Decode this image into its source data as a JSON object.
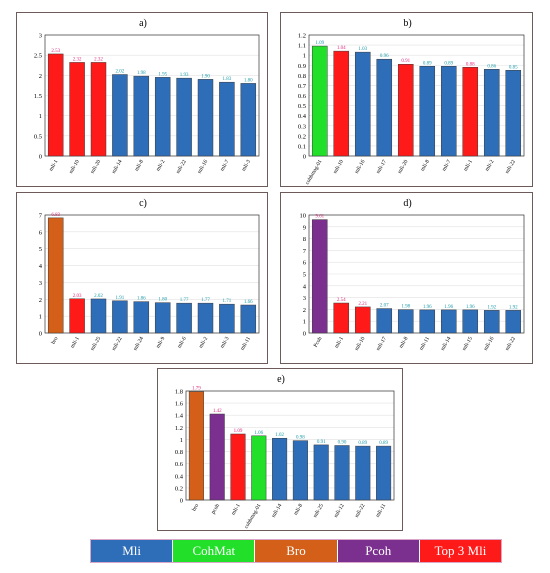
{
  "colors": {
    "Mli": "#2e6db8",
    "CohMat": "#22e02a",
    "Bro": "#d35f18",
    "Pcoh": "#7b2f8e",
    "Top3": "#ff1a1a",
    "axis": "#333333",
    "grid": "#e2e2e2",
    "label_blue": "#1b9aa8",
    "label_pink": "#e0287a"
  },
  "legend": [
    {
      "key": "Mli",
      "label": "Mli"
    },
    {
      "key": "CohMat",
      "label": "CohMat"
    },
    {
      "key": "Bro",
      "label": "Bro"
    },
    {
      "key": "Pcoh",
      "label": "Pcoh"
    },
    {
      "key": "Top3",
      "label": "Top 3 Mli"
    }
  ],
  "chart_data": [
    {
      "type": "bar",
      "title": "a)",
      "ylim": [
        0,
        3
      ],
      "yticks": [
        0,
        0.5,
        1,
        1.5,
        2,
        2.5,
        3
      ],
      "grid": true,
      "categories": [
        "mli-1",
        "mli-10",
        "mli-20",
        "mli-14",
        "mli-8",
        "mli-2",
        "mli-22",
        "mli-16",
        "mli-7",
        "mli-3"
      ],
      "values": [
        2.53,
        2.32,
        2.32,
        2.02,
        1.98,
        1.95,
        1.93,
        1.9,
        1.83,
        1.8
      ],
      "groups": [
        "Top3",
        "Top3",
        "Top3",
        "Mli",
        "Mli",
        "Mli",
        "Mli",
        "Mli",
        "Mli",
        "Mli"
      ]
    },
    {
      "type": "bar",
      "title": "b)",
      "ylim": [
        0,
        1.2
      ],
      "yticks": [
        0,
        0.1,
        0.2,
        0.3,
        0.4,
        0.5,
        0.6,
        0.7,
        0.8,
        0.9,
        1,
        1.1,
        1.2
      ],
      "grid": true,
      "categories": [
        "cohbmag-01",
        "mli-10",
        "mli-16",
        "mli-17",
        "mli-20",
        "mli-8",
        "mli-7",
        "mli-1",
        "mli-2",
        "mli-22"
      ],
      "values": [
        1.09,
        1.04,
        1.03,
        0.96,
        0.91,
        0.89,
        0.89,
        0.88,
        0.86,
        0.85
      ],
      "groups": [
        "CohMat",
        "Top3",
        "Mli",
        "Mli",
        "Top3",
        "Mli",
        "Mli",
        "Top3",
        "Mli",
        "Mli"
      ]
    },
    {
      "type": "bar",
      "title": "c)",
      "ylim": [
        0,
        7
      ],
      "yticks": [
        0,
        1,
        2,
        3,
        4,
        5,
        6,
        7
      ],
      "grid": true,
      "categories": [
        "bro",
        "mli-1",
        "mli-25",
        "mli-22",
        "mli-24",
        "mli-9",
        "mli-6",
        "mli-2",
        "mli-3",
        "mli-11"
      ],
      "values": [
        6.83,
        2.03,
        2.02,
        1.91,
        1.86,
        1.8,
        1.77,
        1.77,
        1.71,
        1.66
      ],
      "groups": [
        "Bro",
        "Top3",
        "Mli",
        "Mli",
        "Mli",
        "Mli",
        "Mli",
        "Mli",
        "Mli",
        "Mli"
      ]
    },
    {
      "type": "bar",
      "title": "d)",
      "ylim": [
        0,
        10
      ],
      "yticks": [
        0,
        1,
        2,
        3,
        4,
        5,
        6,
        7,
        8,
        9,
        10
      ],
      "grid": true,
      "categories": [
        "Pcoh",
        "mli-1",
        "mli-10",
        "mli-17",
        "mli-8",
        "mli-11",
        "mli-14",
        "mli-15",
        "mli-16",
        "mli-22"
      ],
      "values": [
        9.61,
        2.54,
        2.21,
        2.07,
        1.98,
        1.96,
        1.96,
        1.96,
        1.92,
        1.92
      ],
      "groups": [
        "Pcoh",
        "Top3",
        "Top3",
        "Mli",
        "Mli",
        "Mli",
        "Mli",
        "Mli",
        "Mli",
        "Mli"
      ]
    },
    {
      "type": "bar",
      "title": "e)",
      "ylim": [
        0,
        1.8
      ],
      "yticks": [
        0,
        0.2,
        0.4,
        0.6,
        0.8,
        1,
        1.2,
        1.4,
        1.6,
        1.8
      ],
      "grid": true,
      "categories": [
        "bro",
        "pcoh",
        "mli-1",
        "cohbmag-01",
        "mli-14",
        "mli-8",
        "mli-25",
        "mli-12",
        "mli-22",
        "mli-11"
      ],
      "values": [
        1.79,
        1.42,
        1.09,
        1.06,
        1.02,
        0.98,
        0.91,
        0.9,
        0.89,
        0.89
      ],
      "groups": [
        "Bro",
        "Pcoh",
        "Top3",
        "CohMat",
        "Mli",
        "Mli",
        "Mli",
        "Mli",
        "Mli",
        "Mli"
      ]
    }
  ]
}
